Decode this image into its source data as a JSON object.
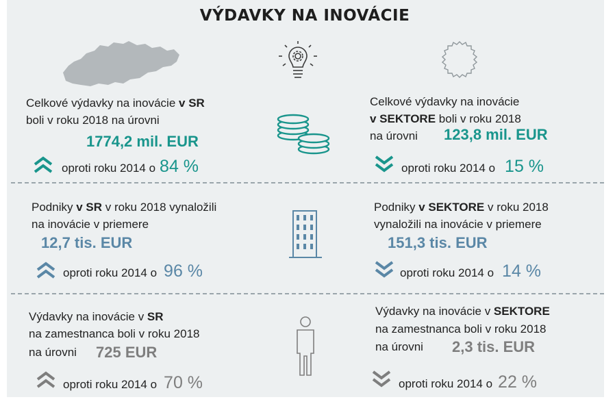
{
  "title": "VÝDAVKY NA INOVÁCIE",
  "rows": [
    {
      "left": {
        "line1_pre": "Celkové výdavky na inovácie ",
        "line1_bold": "v SR",
        "line2": "boli v roku 2018 na úrovni",
        "line3": "",
        "value": "1774,2 mil. EUR",
        "compare": "oproti roku 2014 o",
        "percent": "84 %",
        "trend": "up"
      },
      "right": {
        "line1": "Celkové výdavky na inovácie",
        "line2_bold": "v  SEKTORE",
        "line2_post": " boli v roku 2018",
        "line3": "na úrovni",
        "value": "123,8 mil. EUR",
        "compare": "oproti roku 2014 o",
        "percent": "15 %",
        "trend": "down"
      }
    },
    {
      "left": {
        "line1_pre": "Podniky ",
        "line1_bold": "v SR",
        "line1_post": " v roku 2018 vynaložili",
        "line2": "na inovácie v priemere",
        "value": "12,7 tis. EUR",
        "compare": "oproti roku 2014 o",
        "percent": "96 %",
        "trend": "up"
      },
      "right": {
        "line1_pre": "Podniky ",
        "line1_bold": "v SEKTORE",
        "line1_post": " v roku 2018",
        "line2": "vynaložili  na inovácie v priemere",
        "value": "151,3 tis. EUR",
        "compare": "oproti roku 2014 o",
        "percent": "14 %",
        "trend": "down"
      }
    },
    {
      "left": {
        "line1_pre": "Výdavky na inovácie v ",
        "line1_bold": "SR",
        "line2": "na zamestnanca boli v roku 2018",
        "line3": "na úrovni",
        "value": "725 EUR",
        "compare": "oproti roku 2014 o",
        "percent": "70 %",
        "trend": "up"
      },
      "right": {
        "line1_pre": "Výdavky na inovácie v ",
        "line1_bold": "SEKTORE",
        "line2": "na zamestnanca boli v roku 2018",
        "line3": "na úrovni",
        "value": "2,3 tis. EUR",
        "compare": "oproti roku 2014 o",
        "percent": "22 %",
        "trend": "down"
      }
    }
  ],
  "colors": {
    "row1": "#19958c",
    "row2": "#5a87a6",
    "row3": "#7e7e7e",
    "background": "#edf0f1"
  },
  "icons": [
    "slovakia-map-icon",
    "lightbulb-gear-icon",
    "gear-outline-icon",
    "coins-icon",
    "building-icon",
    "person-icon",
    "chevron-up-icon",
    "chevron-down-icon"
  ]
}
